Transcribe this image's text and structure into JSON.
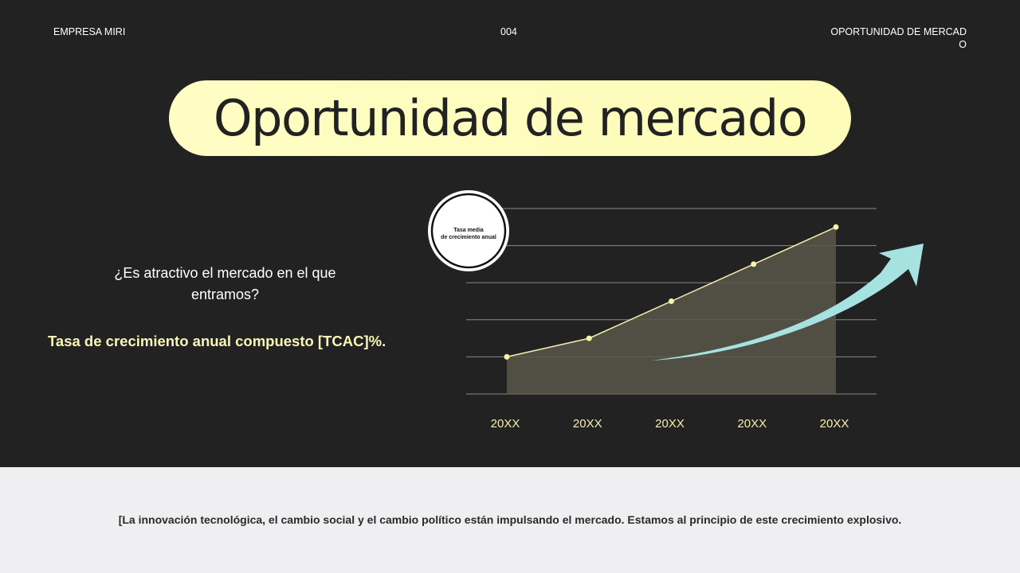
{
  "header": {
    "company": "EMPRESA MIRI",
    "page_number": "004",
    "section": "OPORTUNIDAD DE MERCADO"
  },
  "title": "Oportunidad de mercado",
  "question": "¿Es atractivo el mercado en el que entramos?",
  "highlight": "Tasa de crecimiento anual compuesto [TCAC]%.",
  "badge": {
    "line1": "Tasa media",
    "line2": "de crecimiento anual"
  },
  "chart_data": {
    "type": "area",
    "categories": [
      "20XX",
      "20XX",
      "20XX",
      "20XX",
      "20XX"
    ],
    "values": [
      1,
      1.5,
      2.5,
      3.5,
      4.5
    ],
    "ylim": [
      0,
      5
    ],
    "grid": true,
    "colors": {
      "line": "#f3f0b0",
      "fill": "#59564a",
      "arrow": "#a6e3e0"
    }
  },
  "footer": "[La innovación tecnológica, el cambio social y el cambio político están impulsando el mercado. Estamos al principio de este crecimiento explosivo."
}
